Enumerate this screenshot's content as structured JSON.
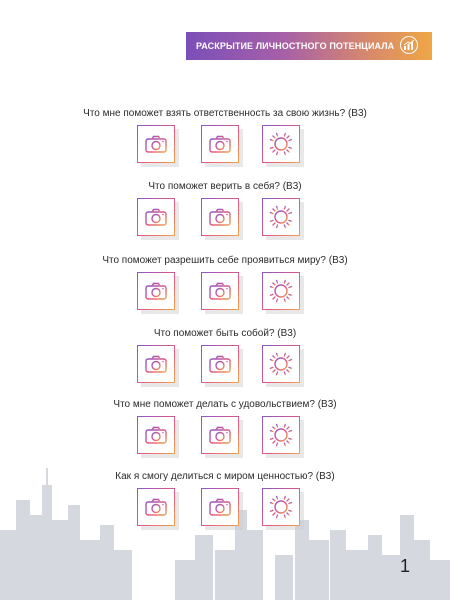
{
  "header": {
    "title": "РАСКРЫТИЕ ЛИЧНОСТНОГО ПОТЕНЦИАЛА",
    "icon": "growth-chart-icon"
  },
  "sections": [
    {
      "question": "Что мне поможет взять ответственность за свою жизнь? (В3)",
      "icons": [
        "camera-icon",
        "camera-icon",
        "sun-icon"
      ]
    },
    {
      "question": "Что поможет верить в себя? (В3)",
      "icons": [
        "camera-icon",
        "camera-icon",
        "sun-icon"
      ]
    },
    {
      "question": "Что поможет разрешить себе проявиться миру? (В3)",
      "icons": [
        "camera-icon",
        "camera-icon",
        "sun-icon"
      ]
    },
    {
      "question": "Что поможет быть собой? (В3)",
      "icons": [
        "camera-icon",
        "camera-icon",
        "sun-icon"
      ]
    },
    {
      "question": "Что мне поможет делать с удовольствием? (В3)",
      "icons": [
        "camera-icon",
        "camera-icon",
        "sun-icon"
      ]
    },
    {
      "question": "Как я смогу делиться с миром ценностью? (В3)",
      "icons": [
        "camera-icon",
        "camera-icon",
        "sun-icon"
      ]
    }
  ],
  "page_number": "1",
  "colors": {
    "gradient_start": "#7b4fb8",
    "gradient_mid": "#e05a86",
    "gradient_end": "#f0a645",
    "skyline": "#c9ccd6"
  }
}
